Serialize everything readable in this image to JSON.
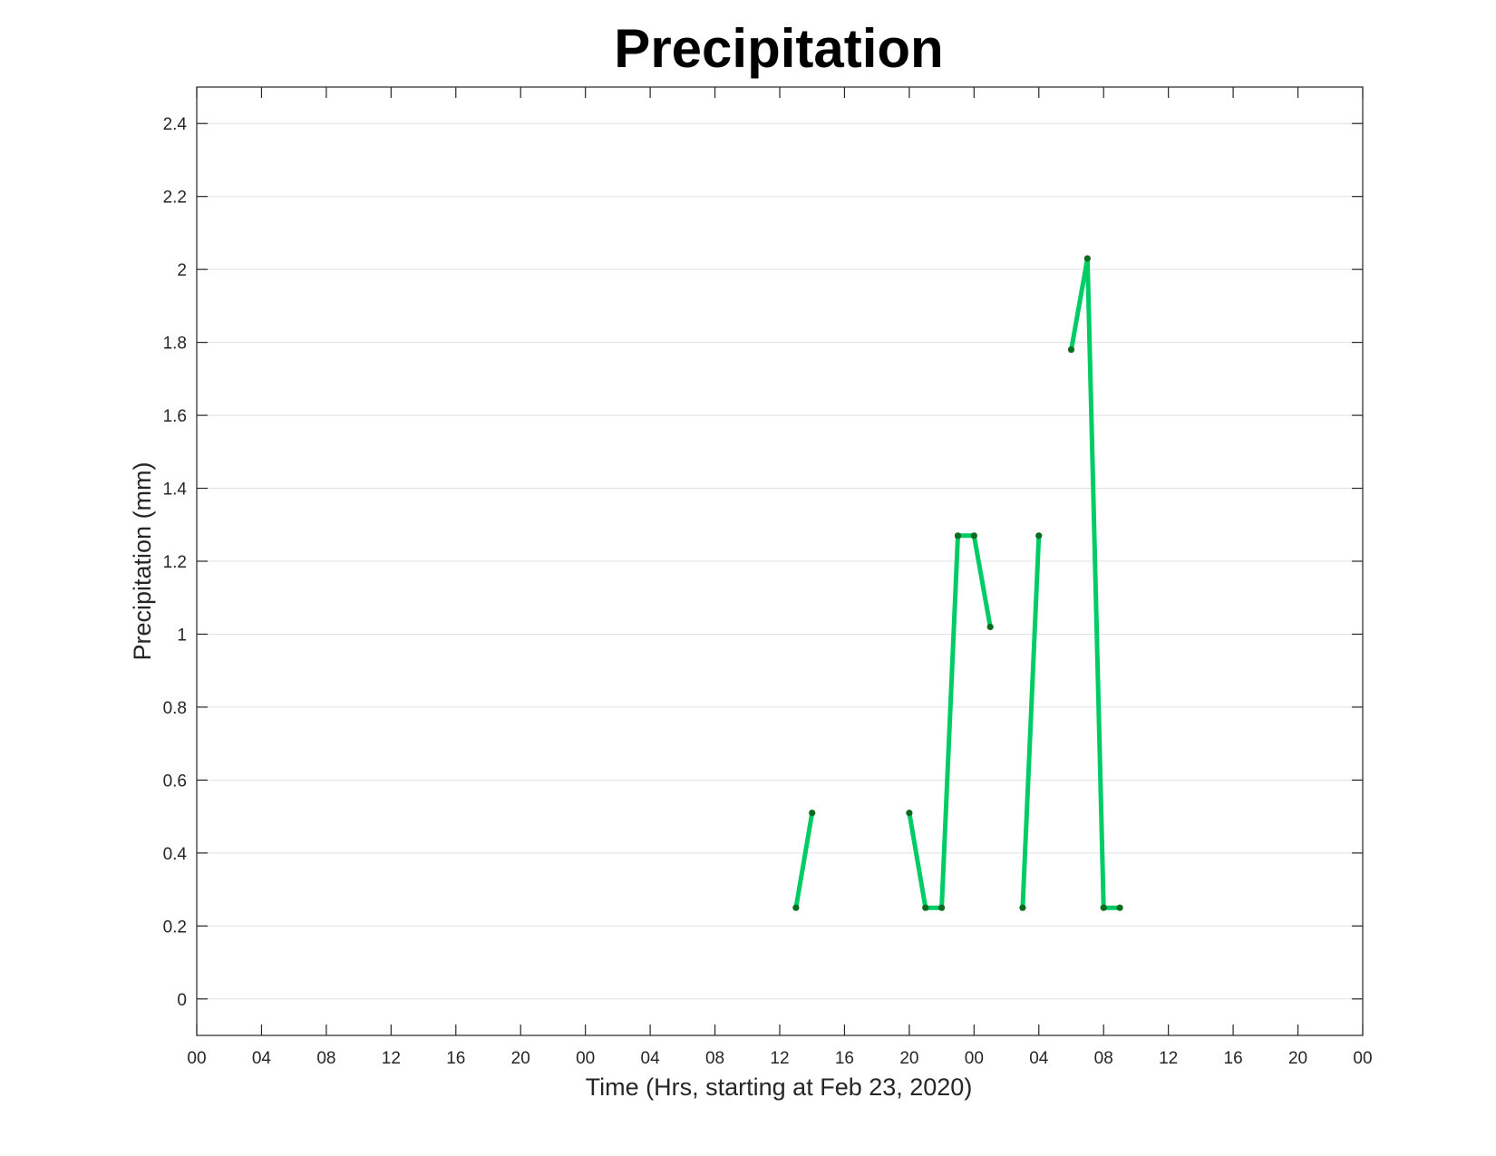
{
  "chart_data": {
    "type": "line",
    "title": "Precipitation",
    "xlabel": "Time (Hrs, starting at Feb 23, 2020)",
    "ylabel": "Precipitation (mm)",
    "xlim": [
      0,
      72
    ],
    "ylim": [
      -0.1,
      2.5
    ],
    "x_ticks": [
      0,
      4,
      8,
      12,
      16,
      20,
      24,
      28,
      32,
      36,
      40,
      44,
      48,
      52,
      56,
      60,
      64,
      68,
      72
    ],
    "x_tick_labels": [
      "00",
      "04",
      "08",
      "12",
      "16",
      "20",
      "00",
      "04",
      "08",
      "12",
      "16",
      "20",
      "00",
      "04",
      "08",
      "12",
      "16",
      "20",
      "00"
    ],
    "y_ticks": [
      0,
      0.2,
      0.4,
      0.6,
      0.8,
      1,
      1.2,
      1.4,
      1.6,
      1.8,
      2,
      2.2,
      2.4
    ],
    "y_tick_labels": [
      "0",
      "0.2",
      "0.4",
      "0.6",
      "0.8",
      "1",
      "1.2",
      "1.4",
      "1.6",
      "1.8",
      "2",
      "2.2",
      "2.4"
    ],
    "grid": "horizontal",
    "colors": {
      "line": "#00cc66",
      "marker": "#0b6b1e"
    },
    "segments": [
      [
        {
          "x": 37,
          "y": 0.25
        },
        {
          "x": 38,
          "y": 0.51
        }
      ],
      [
        {
          "x": 44,
          "y": 0.51
        },
        {
          "x": 45,
          "y": 0.25
        },
        {
          "x": 46,
          "y": 0.25
        },
        {
          "x": 47,
          "y": 1.27
        },
        {
          "x": 48,
          "y": 1.27
        },
        {
          "x": 49,
          "y": 1.02
        }
      ],
      [
        {
          "x": 51,
          "y": 0.25
        },
        {
          "x": 52,
          "y": 1.27
        }
      ],
      [
        {
          "x": 54,
          "y": 1.78
        },
        {
          "x": 55,
          "y": 2.03
        },
        {
          "x": 56,
          "y": 0.25
        },
        {
          "x": 57,
          "y": 0.25
        }
      ]
    ]
  }
}
